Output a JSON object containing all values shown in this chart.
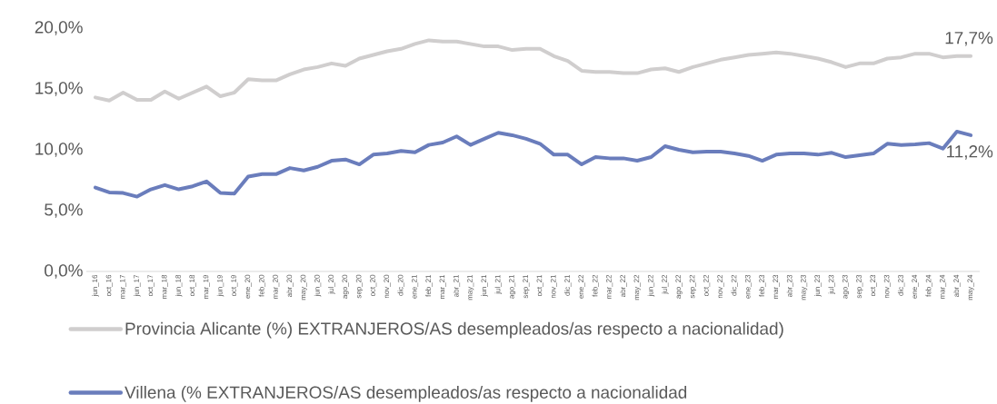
{
  "chart_data": {
    "type": "line",
    "categories": [
      "jun_16",
      "oct_16",
      "mar_17",
      "jun_17",
      "oct_17",
      "mar_18",
      "jun_18",
      "oct_18",
      "mar_19",
      "jun_19",
      "oct_19",
      "ene_20",
      "feb_20",
      "mar_20",
      "abr_20",
      "may_20",
      "jun_20",
      "jul_20",
      "ago_20",
      "sep_20",
      "oct_20",
      "nov_20",
      "dic_20",
      "ene_21",
      "feb_21",
      "mar_21",
      "abr_21",
      "may_21",
      "jun_21",
      "jul_21",
      "ago_21",
      "sep_21",
      "oct_21",
      "nov_21",
      "dic_21",
      "ene_22",
      "feb_22",
      "mar_22",
      "abr_22",
      "may_22",
      "jun_22",
      "jul_22",
      "ago_22",
      "sep_22",
      "oct_22",
      "nov_22",
      "dic_22",
      "ene_23",
      "feb_23",
      "mar_23",
      "abr_23",
      "may_23",
      "jun_23",
      "jul_23",
      "ago_23",
      "sep_23",
      "oct_23",
      "nov_23",
      "dic_23",
      "ene_24",
      "feb_24",
      "mar_24",
      "abr_24",
      "may_24"
    ],
    "series": [
      {
        "name": "Provincia Alicante (%) EXTRANJEROS/AS desempleados/as respecto a nacionalidad)",
        "color": "#d0cece",
        "values": [
          14.3,
          14.05,
          14.7,
          14.1,
          14.1,
          14.8,
          14.2,
          14.7,
          15.2,
          14.4,
          14.7,
          15.8,
          15.7,
          15.7,
          16.2,
          16.6,
          16.8,
          17.1,
          16.9,
          17.5,
          17.8,
          18.1,
          18.3,
          18.7,
          19.0,
          18.9,
          18.9,
          18.7,
          18.5,
          18.5,
          18.2,
          18.3,
          18.3,
          17.7,
          17.3,
          16.5,
          16.4,
          16.4,
          16.3,
          16.3,
          16.6,
          16.7,
          16.4,
          16.8,
          17.1,
          17.4,
          17.6,
          17.8,
          17.9,
          18.0,
          17.9,
          17.7,
          17.5,
          17.2,
          16.8,
          17.1,
          17.1,
          17.5,
          17.6,
          17.9,
          17.9,
          17.6,
          17.7,
          17.7
        ]
      },
      {
        "name": "Villena (% EXTRANJEROS/AS desempleados/as respecto a nacionalidad",
        "color": "#6a7dbc",
        "values": [
          6.9,
          6.5,
          6.45,
          6.15,
          6.75,
          7.1,
          6.75,
          7.0,
          7.4,
          6.45,
          6.4,
          7.8,
          8.0,
          8.0,
          8.5,
          8.3,
          8.6,
          9.1,
          9.2,
          8.8,
          9.6,
          9.7,
          9.9,
          9.8,
          10.4,
          10.6,
          11.1,
          10.4,
          10.9,
          11.4,
          11.2,
          10.9,
          10.5,
          9.6,
          9.6,
          8.8,
          9.4,
          9.3,
          9.3,
          9.1,
          9.4,
          10.3,
          10.0,
          9.8,
          9.85,
          9.85,
          9.7,
          9.5,
          9.1,
          9.6,
          9.7,
          9.7,
          9.6,
          9.75,
          9.4,
          9.55,
          9.7,
          10.5,
          10.4,
          10.45,
          10.55,
          10.1,
          11.5,
          11.2
        ]
      }
    ],
    "ylim": [
      0,
      20
    ],
    "yticks": [
      {
        "value": 0,
        "label": "0,0%"
      },
      {
        "value": 5,
        "label": "5,0%"
      },
      {
        "value": 10,
        "label": "10,0%"
      },
      {
        "value": 15,
        "label": "15,0%"
      },
      {
        "value": 20,
        "label": "20,0%"
      }
    ],
    "annotations": [
      {
        "text": "17,7%",
        "x": "may_24",
        "y": 17.7
      },
      {
        "text": "11,2%",
        "x": "may_24",
        "y": 11.2
      }
    ],
    "legend": "bottom",
    "marker": "none",
    "line_style": "solid"
  }
}
